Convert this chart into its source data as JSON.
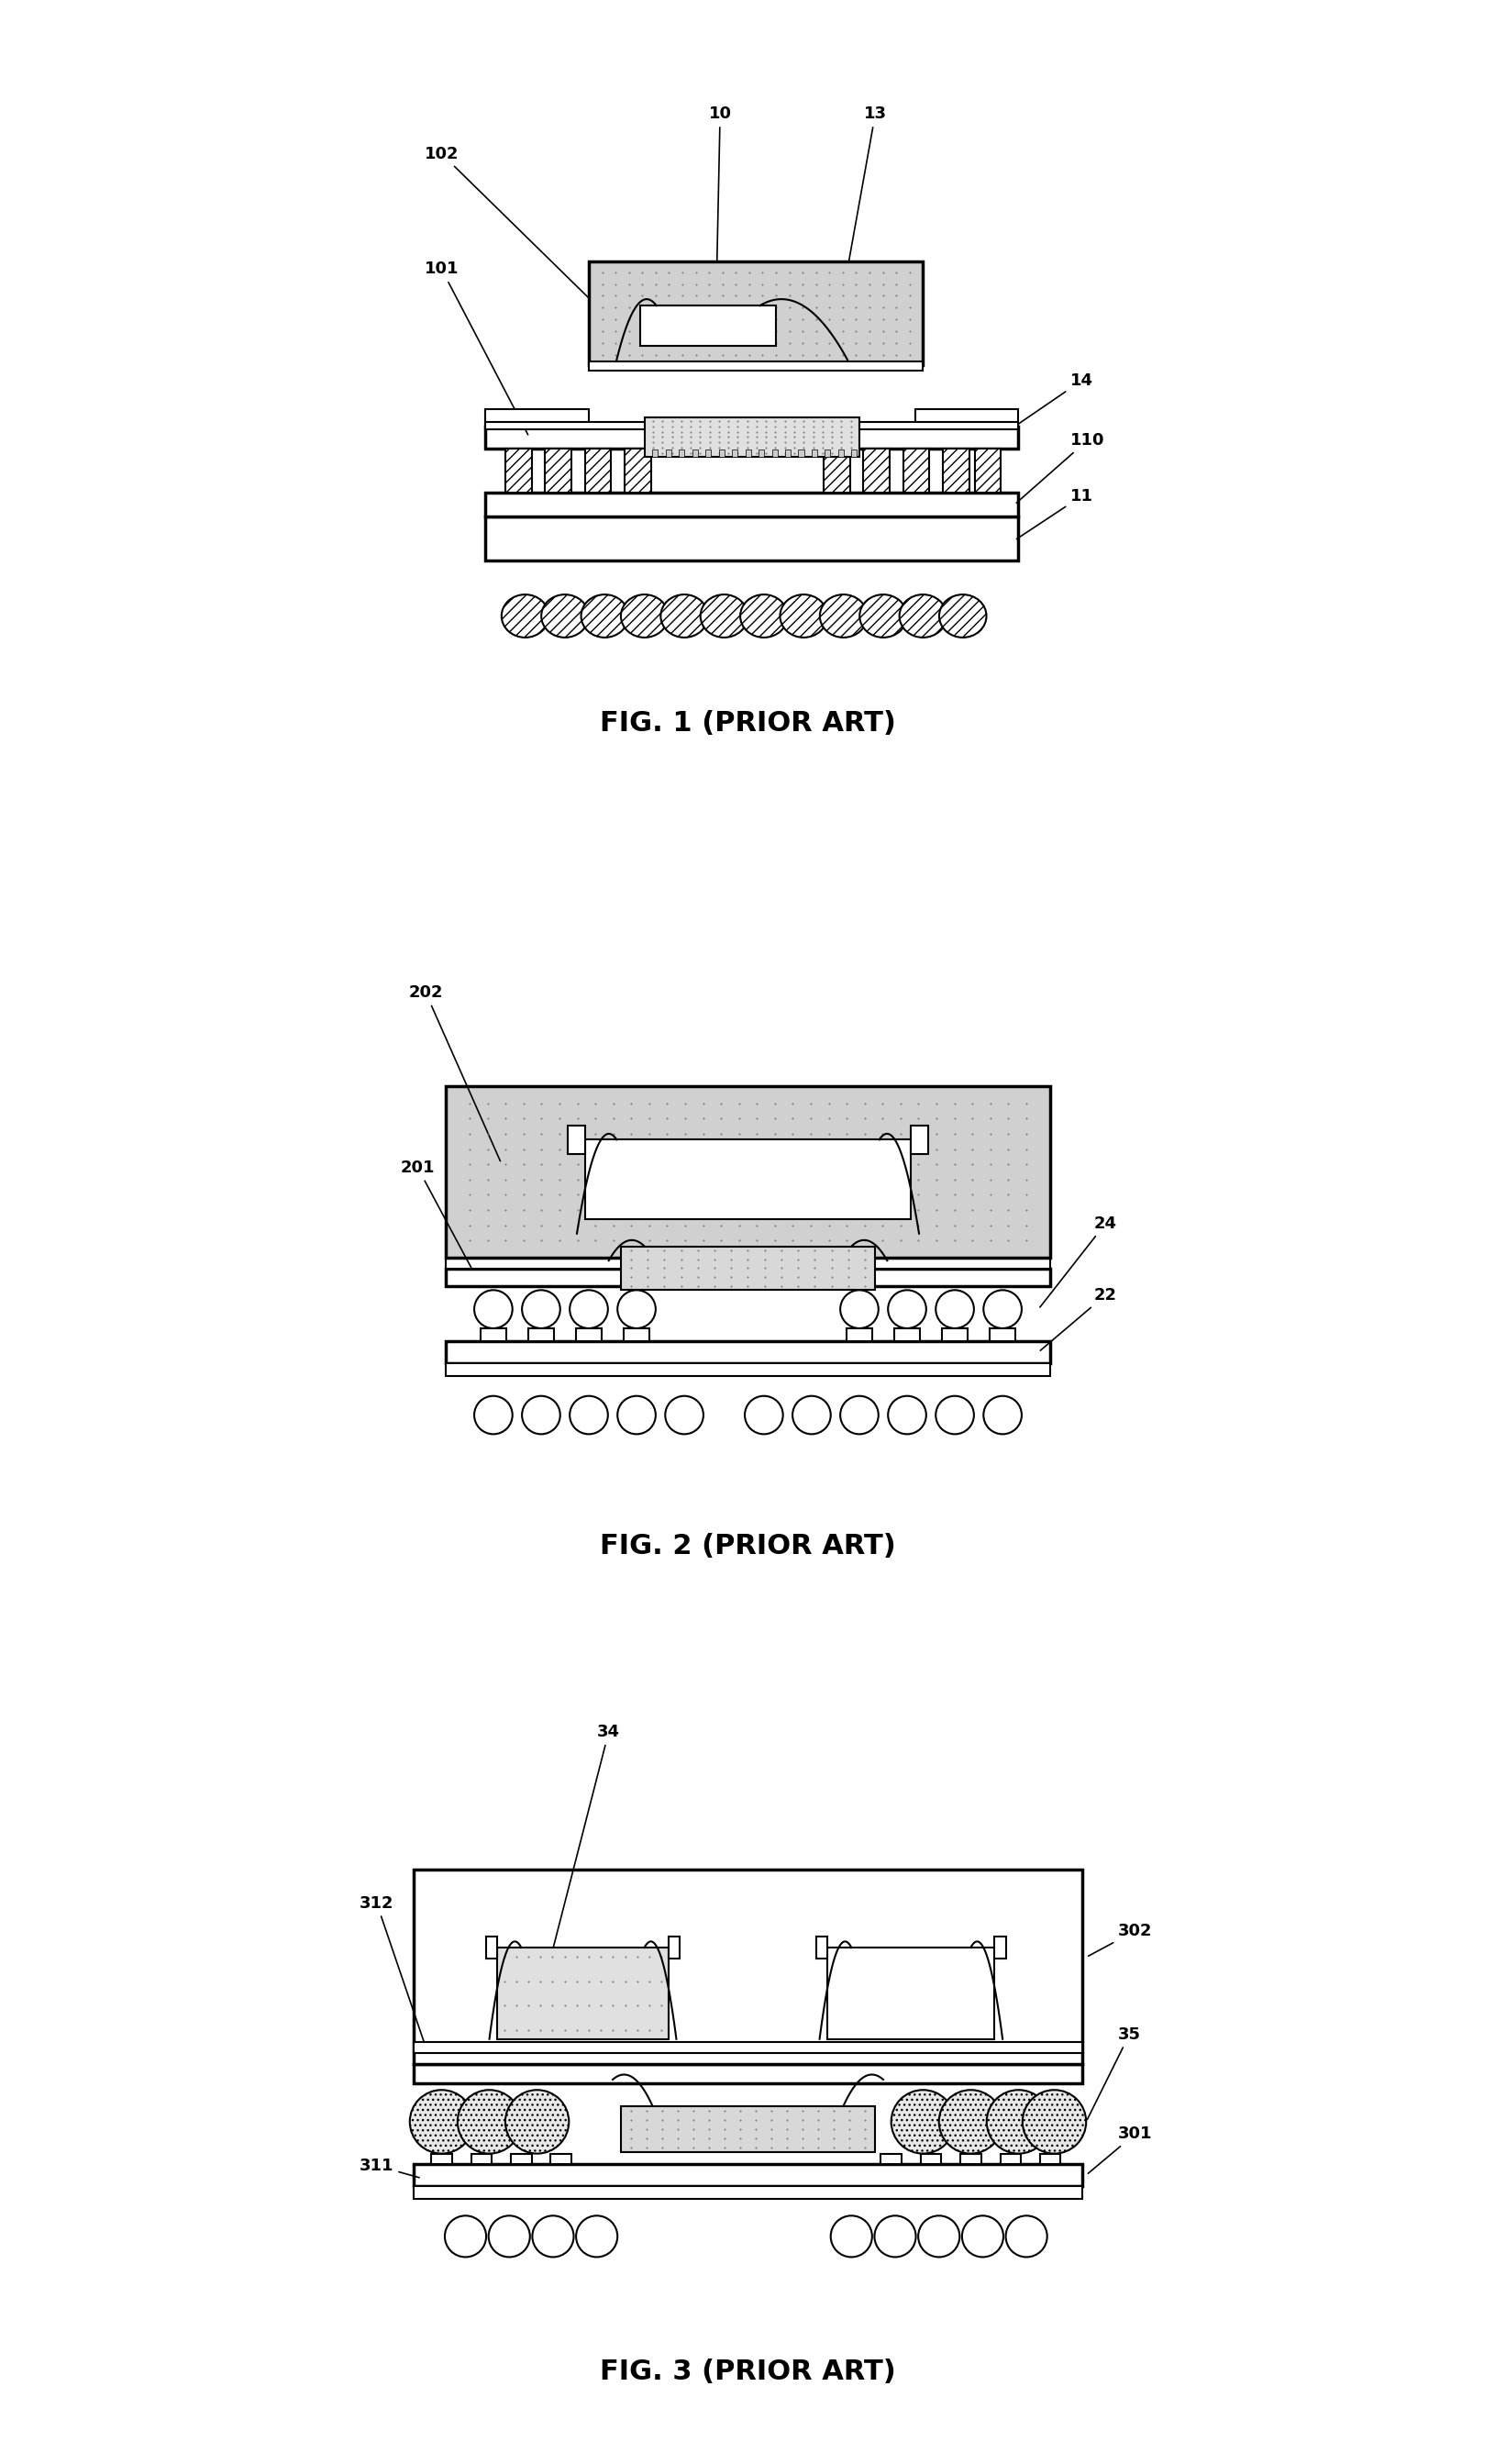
{
  "fig1": {
    "caption": "FIG. 1 (PRIOR ART)"
  },
  "fig2": {
    "caption": "FIG. 2 (PRIOR ART)"
  },
  "fig3": {
    "caption": "FIG. 3 (PRIOR ART)"
  },
  "bg_color": "#ffffff",
  "line_color": "#000000",
  "lw": 1.5,
  "lw_thick": 2.5
}
